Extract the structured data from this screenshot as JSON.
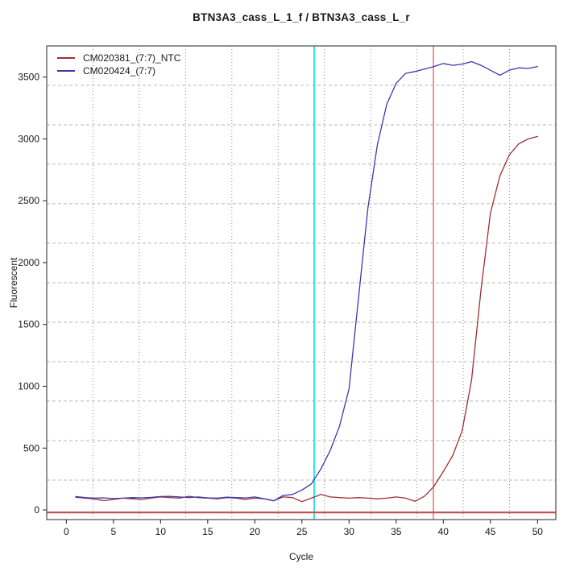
{
  "window": {
    "background": "#ffffff"
  },
  "chart_data": {
    "type": "line",
    "title": "BTN3A3_cass_L_1_f / BTN3A3_cass_L_r",
    "xlabel": "Cycle",
    "ylabel": "Fluorescent",
    "xlim": [
      -2.08,
      51.94
    ],
    "ylim": [
      -78,
      3752
    ],
    "x_ticks": [
      0,
      5,
      10,
      15,
      20,
      25,
      30,
      35,
      40,
      45,
      50
    ],
    "y_ticks": [
      0,
      500,
      1000,
      1500,
      2000,
      2500,
      3000,
      3500
    ],
    "grid": {
      "vertical_dotted_x": [
        2.83,
        7.74,
        12.65,
        17.56,
        22.48,
        27.39,
        32.3,
        37.21,
        42.12,
        47.03
      ],
      "horizontal_dashed_y": [
        241,
        560,
        880,
        1199,
        1518,
        1837,
        2157,
        2476,
        2795,
        3114,
        3434
      ],
      "vertical_color": "#8a8a8a",
      "horizontal_color": "#b8b8b8"
    },
    "markers": {
      "cyan_vline_x": 26.3,
      "red_vline_x": 38.95,
      "red_hline_y": -20,
      "cyan_color": "#35e2e8",
      "red_vline_color": "#ee8a8a",
      "red_hline_color": "#c65353"
    },
    "x": [
      1,
      2,
      3,
      4,
      5,
      6,
      7,
      8,
      9,
      10,
      11,
      12,
      13,
      14,
      15,
      16,
      17,
      18,
      19,
      20,
      21,
      22,
      23,
      24,
      25,
      26,
      27,
      28,
      29,
      30,
      31,
      32,
      33,
      34,
      35,
      36,
      37,
      38,
      39,
      40,
      41,
      42,
      43,
      44,
      45,
      46,
      47,
      48,
      49,
      50
    ],
    "series": [
      {
        "name": "CM020381_(7:7)_NTC",
        "color": "#9e2f33",
        "values": [
          102,
          95,
          88,
          75,
          85,
          95,
          90,
          85,
          95,
          105,
          100,
          95,
          110,
          100,
          95,
          90,
          100,
          95,
          85,
          95,
          90,
          75,
          105,
          100,
          67,
          95,
          125,
          105,
          100,
          95,
          100,
          95,
          90,
          95,
          105,
          95,
          70,
          110,
          190,
          310,
          440,
          640,
          1050,
          1780,
          2400,
          2700,
          2870,
          2960,
          3000,
          3020
        ]
      },
      {
        "name": "CM020424_(7:7)",
        "color": "#3a3aaf",
        "values": [
          108,
          100,
          95,
          98,
          92,
          95,
          100,
          98,
          102,
          108,
          110,
          105,
          100,
          105,
          98,
          95,
          103,
          100,
          97,
          105,
          91,
          74,
          117,
          125,
          161,
          210,
          330,
          480,
          680,
          980,
          1710,
          2440,
          2950,
          3280,
          3450,
          3530,
          3545,
          3565,
          3585,
          3610,
          3595,
          3605,
          3625,
          3595,
          3555,
          3515,
          3555,
          3575,
          3570,
          3585
        ]
      }
    ],
    "legend_position": "top-left",
    "plot_border_color": "#4a4a4a"
  },
  "legend": {
    "entries": [
      {
        "label": "CM020381_(7:7)_NTC",
        "color": "#9e2f33"
      },
      {
        "label": "CM020424_(7:7)",
        "color": "#3a3aaf"
      }
    ]
  }
}
